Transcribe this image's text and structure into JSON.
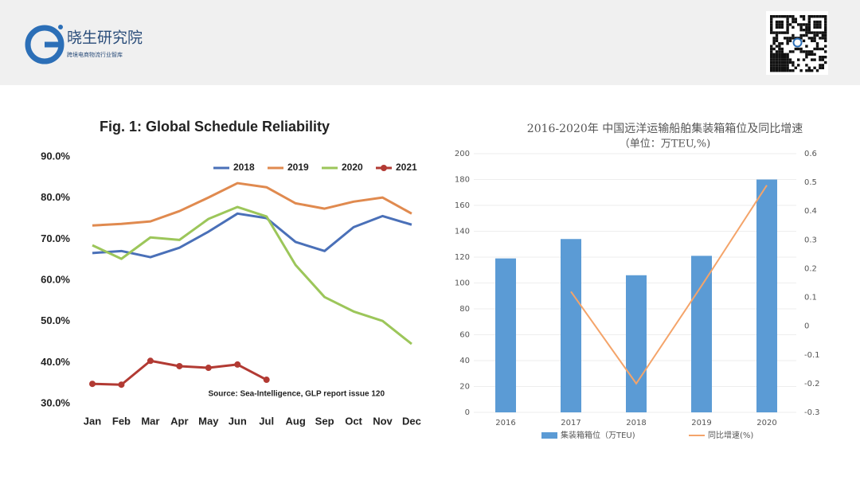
{
  "header": {
    "brand": "晓生研究院",
    "tagline": "跨境电商物流行业智库"
  },
  "chart_data": [
    {
      "type": "line",
      "title": "Fig. 1: Global Schedule Reliability",
      "annotation": "Source: Sea-Intelligence, GLP report issue 120",
      "categories": [
        "Jan",
        "Feb",
        "Mar",
        "Apr",
        "May",
        "Jun",
        "Jul",
        "Aug",
        "Sep",
        "Oct",
        "Nov",
        "Dec"
      ],
      "series": [
        {
          "name": "2018",
          "color": "#4a70b8",
          "values": [
            66.6,
            67.1,
            65.6,
            67.9,
            71.8,
            76.2,
            75.1,
            69.3,
            67.1,
            72.9,
            75.6,
            73.5
          ]
        },
        {
          "name": "2019",
          "color": "#e08a4f",
          "values": [
            73.3,
            73.7,
            74.3,
            76.8,
            80.1,
            83.6,
            82.6,
            78.7,
            77.4,
            79.1,
            80.1,
            76.2
          ]
        },
        {
          "name": "2020",
          "color": "#9cc65a",
          "values": [
            68.5,
            65.2,
            70.4,
            69.8,
            74.9,
            77.8,
            75.5,
            63.7,
            55.9,
            52.4,
            50.1,
            44.5
          ]
        },
        {
          "name": "2021",
          "color": "#b23a33",
          "markers": true,
          "values": [
            34.8,
            34.6,
            40.4,
            39.1,
            38.7,
            39.5,
            35.8,
            null,
            null,
            null,
            null,
            null
          ]
        }
      ],
      "ylim": [
        30,
        90
      ],
      "yticks": [
        {
          "value": 30,
          "label": "30.0%"
        },
        {
          "value": 40,
          "label": "40.0%"
        },
        {
          "value": 50,
          "label": "50.0%"
        },
        {
          "value": 60,
          "label": "60.0%"
        },
        {
          "value": 70,
          "label": "70.0%"
        },
        {
          "value": 80,
          "label": "80.0%"
        },
        {
          "value": 90,
          "label": "90.0%"
        }
      ],
      "grid": false,
      "legend": "top-right"
    },
    {
      "type": "combo",
      "title": "2016-2020年 中国远洋运输船舶集装箱箱位及同比增速",
      "subtitle": "（单位：万TEU,%)",
      "categories": [
        "2016",
        "2017",
        "2018",
        "2019",
        "2020"
      ],
      "series": [
        {
          "name": "集装箱箱位（万TEU)",
          "type": "bar",
          "color": "#5b9bd5",
          "values": [
            119,
            134,
            106,
            121,
            180
          ]
        },
        {
          "name": "同比增速(%)",
          "type": "line",
          "axis": "y2",
          "color": "#f4a46a",
          "values": [
            null,
            0.12,
            -0.2,
            0.14,
            0.49
          ]
        }
      ],
      "ylim": [
        0,
        200
      ],
      "yticks": [
        0,
        20,
        40,
        60,
        80,
        100,
        120,
        140,
        160,
        180,
        200
      ],
      "y2lim": [
        -0.3,
        0.6
      ],
      "y2ticks": [
        -0.3,
        -0.2,
        -0.1,
        0,
        0.1,
        0.2,
        0.3,
        0.4,
        0.5,
        0.6
      ],
      "grid": true,
      "legend": "bottom"
    }
  ]
}
